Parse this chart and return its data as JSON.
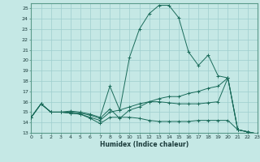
{
  "xlabel": "Humidex (Indice chaleur)",
  "bg_color": "#c5e8e5",
  "grid_color": "#9ecece",
  "line_color": "#1a6b5a",
  "xlim": [
    0,
    23
  ],
  "ylim": [
    13,
    25.5
  ],
  "xtick_labels": [
    "0",
    "1",
    "2",
    "3",
    "4",
    "5",
    "6",
    "7",
    "8",
    "9",
    "10",
    "11",
    "12",
    "13",
    "14",
    "15",
    "16",
    "17",
    "18",
    "19",
    "20",
    "21",
    "22",
    "23"
  ],
  "ytick_labels": [
    "13",
    "14",
    "15",
    "16",
    "17",
    "18",
    "19",
    "20",
    "21",
    "22",
    "23",
    "24",
    "25"
  ],
  "xticks": [
    0,
    1,
    2,
    3,
    4,
    5,
    6,
    7,
    8,
    9,
    10,
    11,
    12,
    13,
    14,
    15,
    16,
    17,
    18,
    19,
    20,
    21,
    22,
    23
  ],
  "yticks": [
    13,
    14,
    15,
    16,
    17,
    18,
    19,
    20,
    21,
    22,
    23,
    24,
    25
  ],
  "lines": [
    {
      "x": [
        0,
        1,
        2,
        3,
        4,
        5,
        6,
        7,
        8,
        9,
        10,
        11,
        12,
        13,
        14,
        15,
        16,
        17,
        18,
        19,
        20,
        21,
        22,
        23
      ],
      "y": [
        14.5,
        15.8,
        15.0,
        15.0,
        15.1,
        15.0,
        14.8,
        14.5,
        17.5,
        15.2,
        20.3,
        23.0,
        24.5,
        25.3,
        25.3,
        24.1,
        20.8,
        19.5,
        20.5,
        18.5,
        18.3,
        13.3,
        13.1,
        12.9
      ]
    },
    {
      "x": [
        0,
        1,
        2,
        3,
        4,
        5,
        6,
        7,
        8,
        9,
        10,
        11,
        12,
        13,
        14,
        15,
        16,
        17,
        18,
        19,
        20,
        21,
        22,
        23
      ],
      "y": [
        14.5,
        15.8,
        15.0,
        15.0,
        15.0,
        14.9,
        14.7,
        14.4,
        15.3,
        14.4,
        15.2,
        15.5,
        16.0,
        16.3,
        16.5,
        16.5,
        16.8,
        17.0,
        17.3,
        17.5,
        18.3,
        13.3,
        13.1,
        12.9
      ]
    },
    {
      "x": [
        0,
        1,
        2,
        3,
        4,
        5,
        6,
        7,
        8,
        9,
        10,
        11,
        12,
        13,
        14,
        15,
        16,
        17,
        18,
        19,
        20,
        21,
        22,
        23
      ],
      "y": [
        14.5,
        15.8,
        15.0,
        15.0,
        14.9,
        14.8,
        14.5,
        14.2,
        15.0,
        15.2,
        15.5,
        15.8,
        16.0,
        16.0,
        15.9,
        15.8,
        15.8,
        15.8,
        15.9,
        16.0,
        18.3,
        13.3,
        13.1,
        12.9
      ]
    },
    {
      "x": [
        0,
        1,
        2,
        3,
        4,
        5,
        6,
        7,
        8,
        9,
        10,
        11,
        12,
        13,
        14,
        15,
        16,
        17,
        18,
        19,
        20,
        21,
        22,
        23
      ],
      "y": [
        14.5,
        15.8,
        15.0,
        15.0,
        14.9,
        14.8,
        14.4,
        13.9,
        14.5,
        14.5,
        14.5,
        14.4,
        14.2,
        14.1,
        14.1,
        14.1,
        14.1,
        14.2,
        14.2,
        14.2,
        14.2,
        13.3,
        13.1,
        12.9
      ]
    }
  ]
}
